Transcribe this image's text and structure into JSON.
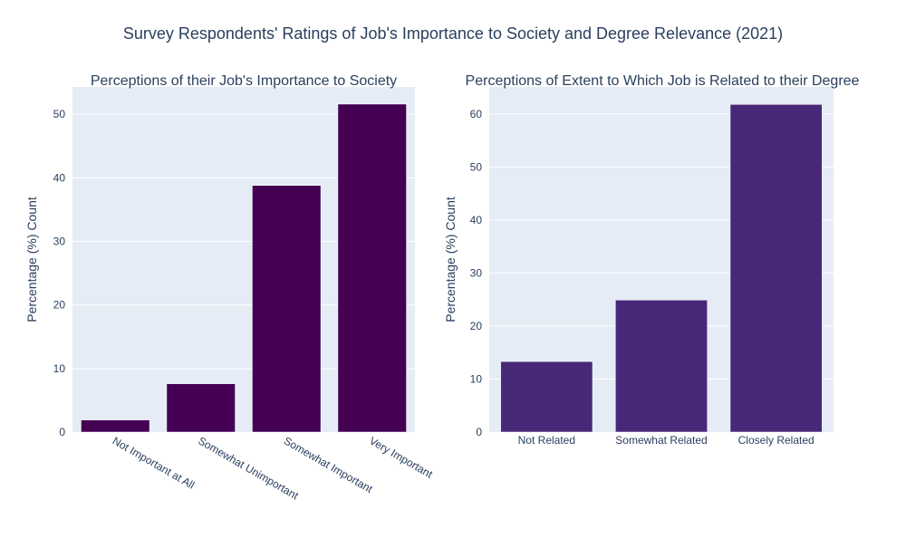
{
  "figure": {
    "title": "Survey Respondents' Ratings of Job's Importance to Society and Degree Relevance (2021)"
  },
  "colors": {
    "plot_bg": "#E5ECF6",
    "grid": "#FFFFFF",
    "text": "#2A3F5F",
    "left_bar": "#440154",
    "right_bar": "#482878"
  },
  "chart_data": [
    {
      "type": "bar",
      "title": "Perceptions of their Job's Importance to Society",
      "xlabel": "",
      "ylabel": "Percentage (%) Count",
      "categories": [
        "Not Important at All",
        "Somewhat Unimportant",
        "Somewhat Important",
        "Very Important"
      ],
      "values": [
        1.9,
        7.6,
        38.8,
        51.6
      ],
      "ylim": [
        0,
        54.3
      ],
      "yticks": [
        0,
        10,
        20,
        30,
        40,
        50
      ],
      "grid": true,
      "legend": "none"
    },
    {
      "type": "bar",
      "title": "Perceptions of Extent to Which Job is Related to their Degree",
      "xlabel": "",
      "ylabel": "Percentage (%) Count",
      "categories": [
        "Not Related",
        "Somewhat Related",
        "Closely Related"
      ],
      "values": [
        13.3,
        24.9,
        61.8
      ],
      "ylim": [
        0,
        65.1
      ],
      "yticks": [
        0,
        10,
        20,
        30,
        40,
        50,
        60
      ],
      "grid": true,
      "legend": "none"
    }
  ]
}
